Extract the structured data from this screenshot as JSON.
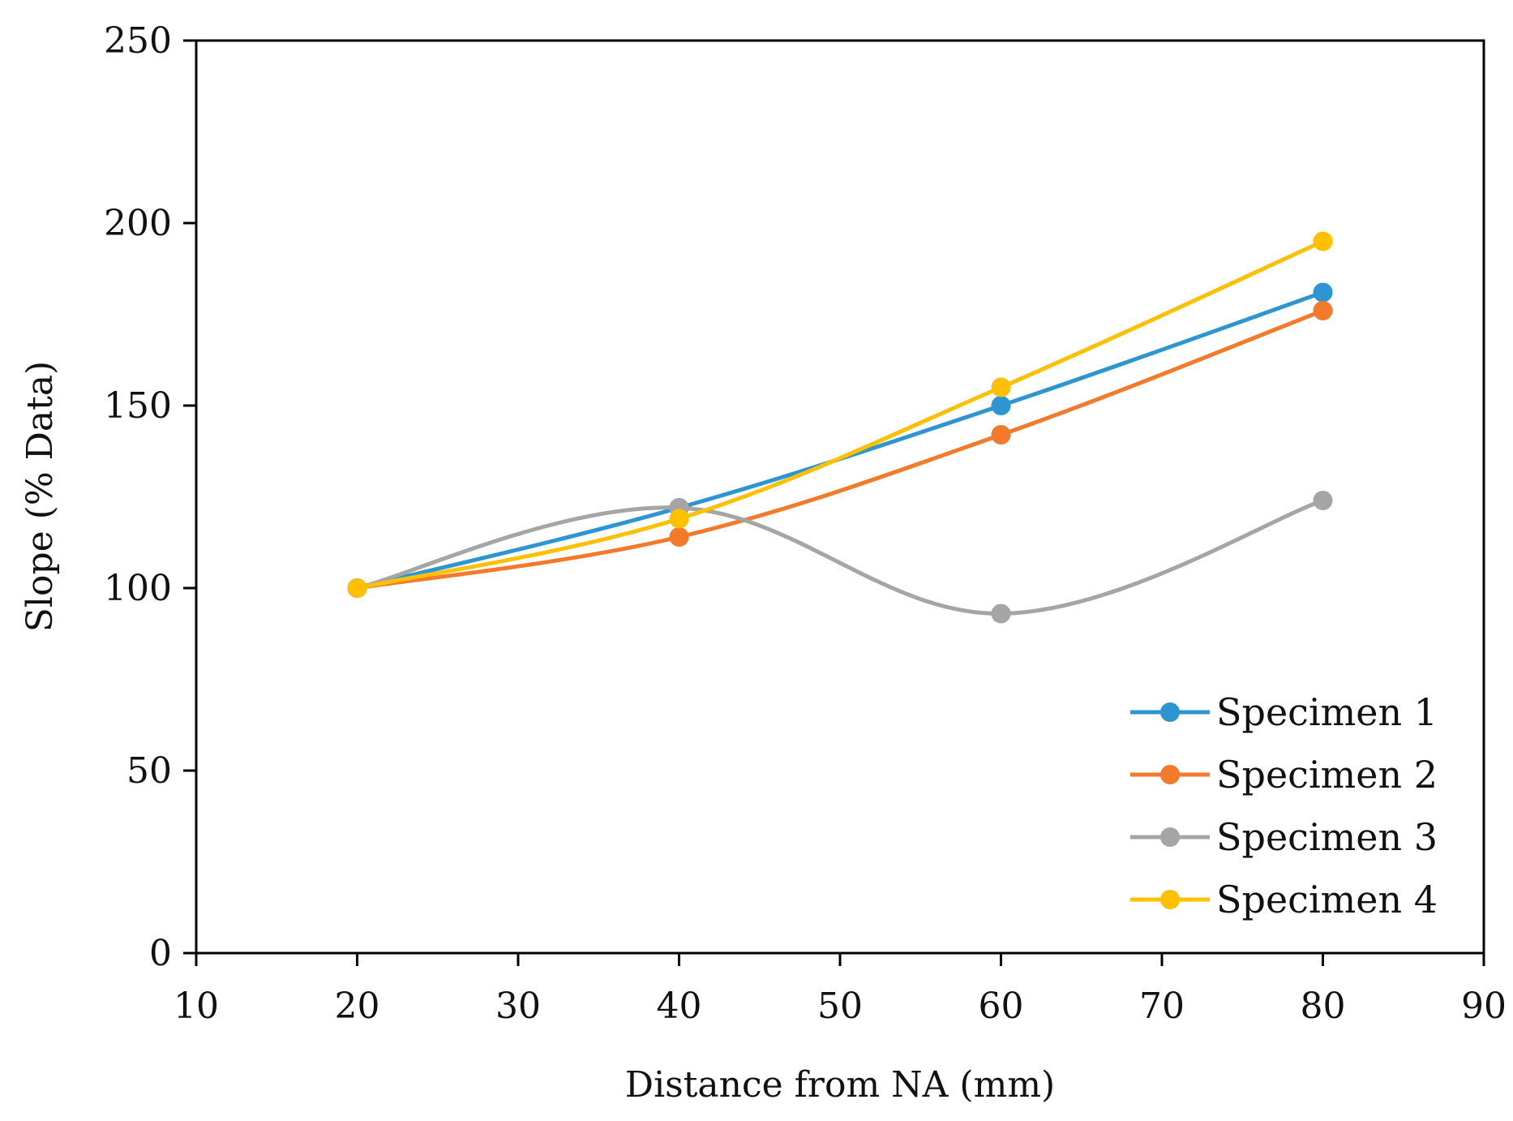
{
  "chart_data": {
    "type": "line",
    "smooth": true,
    "xlabel": "Distance from NA (mm)",
    "ylabel": "Slope (% Data)",
    "xlim": [
      10,
      90
    ],
    "ylim": [
      0,
      250
    ],
    "xticks": [
      "10",
      "20",
      "30",
      "40",
      "50",
      "60",
      "70",
      "80",
      "90"
    ],
    "yticks": [
      "0",
      "50",
      "100",
      "150",
      "200",
      "250"
    ],
    "grid": false,
    "legend_position": "bottom-right",
    "x": [
      20,
      40,
      60,
      80
    ],
    "series": [
      {
        "name": "Specimen 1",
        "color": "#2E95D3",
        "values": [
          100,
          122,
          150,
          181
        ]
      },
      {
        "name": "Specimen 2",
        "color": "#F47A2B",
        "values": [
          100,
          114,
          142,
          176
        ]
      },
      {
        "name": "Specimen 3",
        "color": "#A5A5A5",
        "values": [
          100,
          122,
          93,
          124
        ]
      },
      {
        "name": "Specimen 4",
        "color": "#FFC000",
        "values": [
          100,
          119,
          155,
          195
        ]
      }
    ]
  }
}
